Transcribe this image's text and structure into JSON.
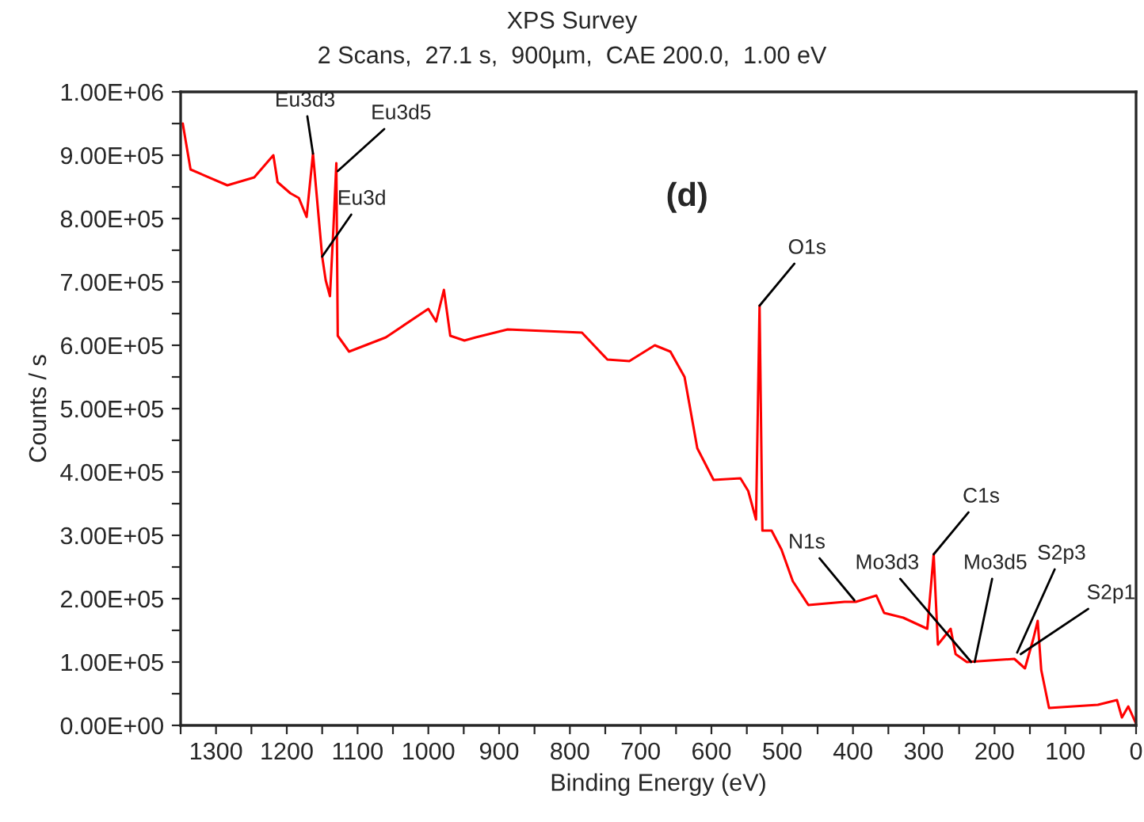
{
  "chart_data": {
    "type": "line",
    "title": "XPS Survey",
    "subtitle": "2 Scans,  27.1 s,  900µm,  CAE 200.0,  1.00 eV",
    "xlabel": "Binding Energy (eV)",
    "ylabel": "Counts / s",
    "x": [
      1347,
      1336,
      1284,
      1246,
      1219,
      1213,
      1195,
      1183,
      1172,
      1163,
      1157,
      1150,
      1145,
      1139,
      1134,
      1130,
      1128,
      1112,
      1060,
      1000,
      989,
      978,
      969,
      949,
      933,
      888,
      783,
      747,
      716,
      680,
      658,
      638,
      620,
      597,
      559,
      548,
      537,
      532,
      528,
      515,
      501,
      485,
      463,
      412,
      396,
      367,
      356,
      329,
      295,
      286,
      280,
      262,
      255,
      239,
      172,
      157,
      145,
      139,
      134,
      123,
      54,
      27,
      20,
      11,
      0
    ],
    "series": [
      {
        "color": "#ff0000",
        "values": [
          950000,
          877500,
          852500,
          865000,
          900000,
          857500,
          840000,
          832500,
          802500,
          902500,
          827500,
          740000,
          702500,
          677500,
          787500,
          887500,
          615000,
          590000,
          612500,
          657500,
          637500,
          687500,
          615000,
          607500,
          612500,
          625000,
          620000,
          577500,
          575000,
          600000,
          590000,
          550000,
          437500,
          387500,
          390000,
          370000,
          325000,
          662500,
          307500,
          307500,
          277500,
          227500,
          190000,
          195000,
          195000,
          205000,
          177500,
          170000,
          152500,
          270000,
          127500,
          152500,
          112500,
          100000,
          105000,
          90000,
          137500,
          165000,
          87500,
          27500,
          32500,
          40000,
          12500,
          30000,
          2500
        ]
      }
    ],
    "xlim": [
      1350,
      0
    ],
    "xticks": [
      {
        "value": 1350,
        "label": null
      },
      1300,
      {
        "value": 1250,
        "label": null
      },
      1200,
      {
        "value": 1150,
        "label": null
      },
      1100,
      {
        "value": 1050,
        "label": null
      },
      1000,
      {
        "value": 950,
        "label": null
      },
      900,
      {
        "value": 850,
        "label": null
      },
      800,
      {
        "value": 750,
        "label": null
      },
      700,
      {
        "value": 650,
        "label": null
      },
      600,
      {
        "value": 550,
        "label": null
      },
      500,
      {
        "value": 450,
        "label": null
      },
      400,
      {
        "value": 350,
        "label": null
      },
      300,
      {
        "value": 250,
        "label": null
      },
      200,
      {
        "value": 150,
        "label": null
      },
      100,
      {
        "value": 50,
        "label": null
      },
      0
    ],
    "ylim": [
      0,
      1000000
    ],
    "yticks": [
      {
        "value": 0,
        "label": "0.00E+00"
      },
      {
        "value": 50000,
        "label": null
      },
      {
        "value": 100000,
        "label": "1.00E+05"
      },
      {
        "value": 150000,
        "label": null
      },
      {
        "value": 200000,
        "label": "2.00E+05"
      },
      {
        "value": 250000,
        "label": null
      },
      {
        "value": 300000,
        "label": "3.00E+05"
      },
      {
        "value": 350000,
        "label": null
      },
      {
        "value": 400000,
        "label": "4.00E+05"
      },
      {
        "value": 450000,
        "label": null
      },
      {
        "value": 500000,
        "label": "5.00E+05"
      },
      {
        "value": 550000,
        "label": null
      },
      {
        "value": 600000,
        "label": "6.00E+05"
      },
      {
        "value": 650000,
        "label": null
      },
      {
        "value": 700000,
        "label": "7.00E+05"
      },
      {
        "value": 750000,
        "label": null
      },
      {
        "value": 800000,
        "label": "8.00E+05"
      },
      {
        "value": 850000,
        "label": null
      },
      {
        "value": 900000,
        "label": "9.00E+05"
      },
      {
        "value": 950000,
        "label": null
      },
      {
        "value": 1000000,
        "label": "1.00E+06"
      }
    ],
    "grid": false,
    "legend": false,
    "marker": "none",
    "line_style": "solid",
    "annotations": [
      "(d)",
      {
        "text": "Eu3d3",
        "x": 1163,
        "y": 902500
      },
      {
        "text": "Eu3d5",
        "x": 1128,
        "y": 875000
      },
      {
        "text": "Eu3d",
        "x": 1150,
        "y": 740000
      },
      {
        "text": "O1s",
        "x": 532,
        "y": 662500
      },
      {
        "text": "N1s",
        "x": 398,
        "y": 197500
      },
      {
        "text": "C1s",
        "x": 286,
        "y": 270000
      },
      {
        "text": "Mo3d3",
        "x": 233,
        "y": 100000
      },
      {
        "text": "Mo3d5",
        "x": 228,
        "y": 100000
      },
      {
        "text": "S2p3",
        "x": 168,
        "y": 115000
      },
      {
        "text": "S2p1",
        "x": 163,
        "y": 112500
      }
    ]
  }
}
